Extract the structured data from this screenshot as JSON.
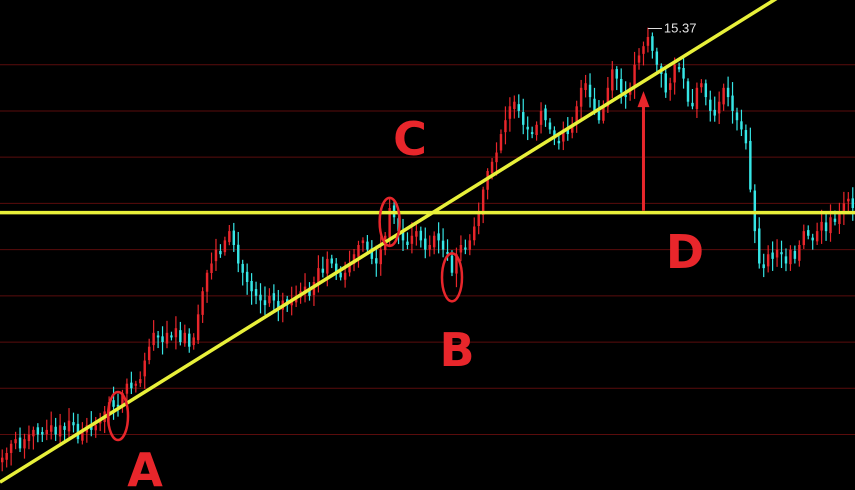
{
  "chart_data": {
    "type": "candlestick",
    "title": "",
    "xlabel": "",
    "ylabel": "",
    "ylim": [
      10.4,
      15.7
    ],
    "grid": "horizontal",
    "colors": {
      "background": "#000000",
      "up": "#e8262b",
      "down": "#36e6e6",
      "trendline": "#e8f03a",
      "annotation": "#e8262b",
      "grid": "#5a0c0c"
    },
    "peak_value": "15.37",
    "support_level": 13.4,
    "trendline": [
      [
        0,
        10.5
      ],
      [
        150,
        15.0
      ]
    ],
    "points": [
      {
        "label": "A",
        "index": 26
      },
      {
        "label": "B",
        "index": 101
      },
      {
        "label": "C",
        "index": 87
      },
      {
        "label": "D",
        "index": 151
      }
    ],
    "highlights": [
      {
        "index": 26,
        "value": 11.2
      },
      {
        "index": 87,
        "value": 13.3
      },
      {
        "index": 101,
        "value": 12.7
      }
    ],
    "closes": [
      10.75,
      10.8,
      10.9,
      10.95,
      10.85,
      10.95,
      11.0,
      11.05,
      11.0,
      11.0,
      11.05,
      11.1,
      11.0,
      11.1,
      11.05,
      11.15,
      11.1,
      10.95,
      11.05,
      11.1,
      11.05,
      11.1,
      11.15,
      11.25,
      11.35,
      11.3,
      11.3,
      11.45,
      11.55,
      11.5,
      11.55,
      11.6,
      11.8,
      11.95,
      12.1,
      12.05,
      12.0,
      12.1,
      12.05,
      12.15,
      12.0,
      12.1,
      11.95,
      12.05,
      12.3,
      12.55,
      12.75,
      12.85,
      13.0,
      12.95,
      13.1,
      13.2,
      13.05,
      12.85,
      12.75,
      12.65,
      12.55,
      12.5,
      12.45,
      12.4,
      12.5,
      12.45,
      12.35,
      12.45,
      12.4,
      12.45,
      12.5,
      12.55,
      12.6,
      12.5,
      12.65,
      12.8,
      12.75,
      12.9,
      12.85,
      12.75,
      12.7,
      12.75,
      12.85,
      12.95,
      13.05,
      13.1,
      13.0,
      12.9,
      12.85,
      13.0,
      13.15,
      13.45,
      13.35,
      13.2,
      13.1,
      13.05,
      13.15,
      13.2,
      13.1,
      13.0,
      13.05,
      13.15,
      13.1,
      13.0,
      12.95,
      12.75,
      12.95,
      13.05,
      13.0,
      13.1,
      13.25,
      13.4,
      13.65,
      13.85,
      13.95,
      14.05,
      14.25,
      14.4,
      14.55,
      14.6,
      14.5,
      14.35,
      14.3,
      14.25,
      14.35,
      14.5,
      14.4,
      14.3,
      14.2,
      14.15,
      14.3,
      14.25,
      14.35,
      14.55,
      14.75,
      14.8,
      14.65,
      14.5,
      14.4,
      14.55,
      14.75,
      14.95,
      14.85,
      14.7,
      14.65,
      14.75,
      15.0,
      15.1,
      15.2,
      15.3,
      15.15,
      15.0,
      14.9,
      14.7,
      14.8,
      15.0,
      14.95,
      14.85,
      14.6,
      14.55,
      14.75,
      14.8,
      14.65,
      14.5,
      14.45,
      14.6,
      14.75,
      14.65,
      14.5,
      14.4,
      14.3,
      14.15,
      13.65,
      13.2,
      12.85,
      12.8,
      12.95,
      12.9,
      13.0,
      12.95,
      12.85,
      13.0,
      12.9,
      13.05,
      13.2,
      13.15,
      13.1,
      13.2,
      13.3,
      13.2,
      13.35,
      13.3,
      13.4,
      13.5,
      13.55,
      13.45
    ]
  },
  "annotations": {
    "A": "A",
    "B": "B",
    "C": "C",
    "D": "D",
    "peak": "15.37"
  }
}
